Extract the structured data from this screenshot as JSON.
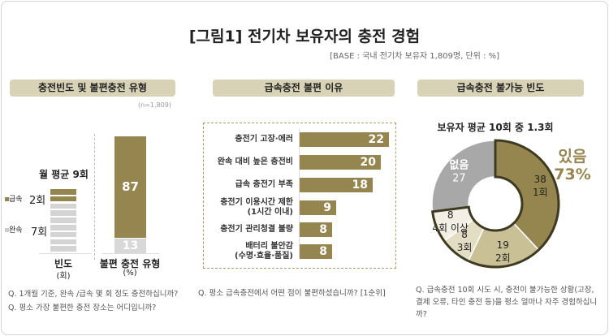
{
  "title": "[그림1] 전기차 보유자의 충전 경험",
  "base": "[BASE : 국내 전기차 보유자 1,809명, 단위 : %]",
  "colors": {
    "olive": "#958650",
    "header": "#d8d2b7",
    "light": "#c9c096",
    "lighter": "#e4ddc5",
    "lightest": "#f2efe4",
    "grey": "#a8a8a8",
    "outline": "#3e3a22"
  },
  "left": {
    "header": "충전빈도 및 불편충전 유형",
    "n": "(n=1,809)",
    "avg": "월 평균 9회",
    "legend_fast": "급속",
    "legend_slow": "완속",
    "fast_count": "2회",
    "slow_count": "7회",
    "xlabel1": "빈도",
    "xlabel1_unit": "(회)",
    "xlabel2": "불편 충전 유형",
    "xlabel2_unit": "(%)",
    "q1": "Q. 1개월 기준, 완속 /급속 몇 회 정도 충전하십니까?",
    "q2": "Q. 평소 가장 불편한 충전 장소는 어디입니까?"
  },
  "middle": {
    "header": "급속충전 불편 이유",
    "question": "Q. 평소 급속충전에서 어떤 점이 불편하셨습니까? [1순위]"
  },
  "right": {
    "header": "급속충전 불가능 빈도",
    "subtitle": "보유자 평균 10회 중 1.3회",
    "yes_label": "있음",
    "yes_value": "73%",
    "question": "Q. 급속충전 10회 시도 시, 충전이 불가능한 상황(고장, 결제 오류, 타인 충전 등)을 평소 얼마나 자주 경험하십니까?"
  },
  "chart_data": [
    {
      "type": "bar",
      "stacked": true,
      "title": "빈도",
      "ylabel": "(회)",
      "series": [
        {
          "name": "급속",
          "values": [
            2
          ]
        },
        {
          "name": "완속",
          "values": [
            7
          ]
        }
      ],
      "total": 9
    },
    {
      "type": "bar",
      "stacked": true,
      "title": "불편 충전 유형",
      "ylabel": "(%)",
      "segments": [
        {
          "value": 87,
          "label": "87"
        },
        {
          "value": 13,
          "label": "13"
        }
      ]
    },
    {
      "type": "bar",
      "orientation": "horizontal",
      "categories": [
        "충전기 고장·에러",
        "완속 대비  높은 충전비",
        "급속 충전기 부족",
        "충전기 이용시간 제한\n(1시간 이내)",
        "충전기 관리청결 불량",
        "배터리 불안감\n(수명·효율·품질)"
      ],
      "values": [
        22,
        20,
        18,
        9,
        8,
        8
      ]
    },
    {
      "type": "pie",
      "donut": true,
      "slices": [
        {
          "label": "1회",
          "value": 38
        },
        {
          "label": "2회",
          "value": 19
        },
        {
          "label": "3회",
          "value": 8
        },
        {
          "label": "4회 이상",
          "value": 8
        },
        {
          "label": "없음",
          "value": 27
        }
      ]
    }
  ]
}
